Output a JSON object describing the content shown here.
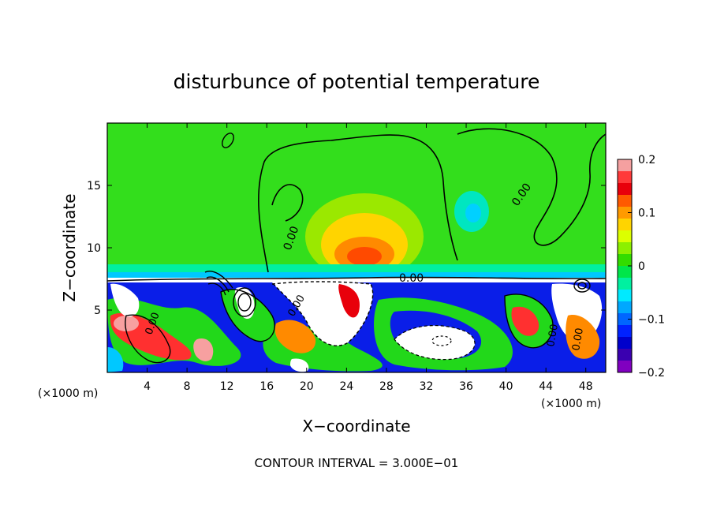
{
  "chart_data": {
    "type": "heatmap",
    "title": "disturbunce of potential temperature",
    "xlabel": "X−coordinate",
    "ylabel": "Z−coordinate",
    "x_unit_left": "(×1000 m)",
    "x_unit_right": "(×1000 m)",
    "xlim": [
      0,
      50
    ],
    "ylim": [
      0,
      20
    ],
    "xticks": [
      4,
      8,
      12,
      16,
      20,
      24,
      28,
      32,
      36,
      40,
      44,
      48
    ],
    "yticks": [
      5,
      10,
      15
    ],
    "colorbar": {
      "range": [
        -0.2,
        0.2
      ],
      "ticks": [
        0.2,
        0.1,
        0,
        -0.1,
        -0.2
      ],
      "tick_labels": [
        "0.2",
        "0.1",
        "0",
        "−0.1",
        "−0.2"
      ],
      "colors": [
        "#f5a0a0",
        "#ff3a3a",
        "#e8000b",
        "#ff5a00",
        "#ff9a00",
        "#ffd400",
        "#dcff00",
        "#8cf000",
        "#32dc00",
        "#00e64a",
        "#00f0a0",
        "#00eaff",
        "#00a8ff",
        "#0066ff",
        "#0022ff",
        "#0000cc",
        "#3a00b0",
        "#8000c0"
      ]
    },
    "contour_labels": [
      "0.00",
      "0.00",
      "0.00",
      "0.00",
      "0.00",
      "0.00",
      "0.00"
    ],
    "contour_interval_text": "CONTOUR INTERVAL = 3.000E−01"
  }
}
